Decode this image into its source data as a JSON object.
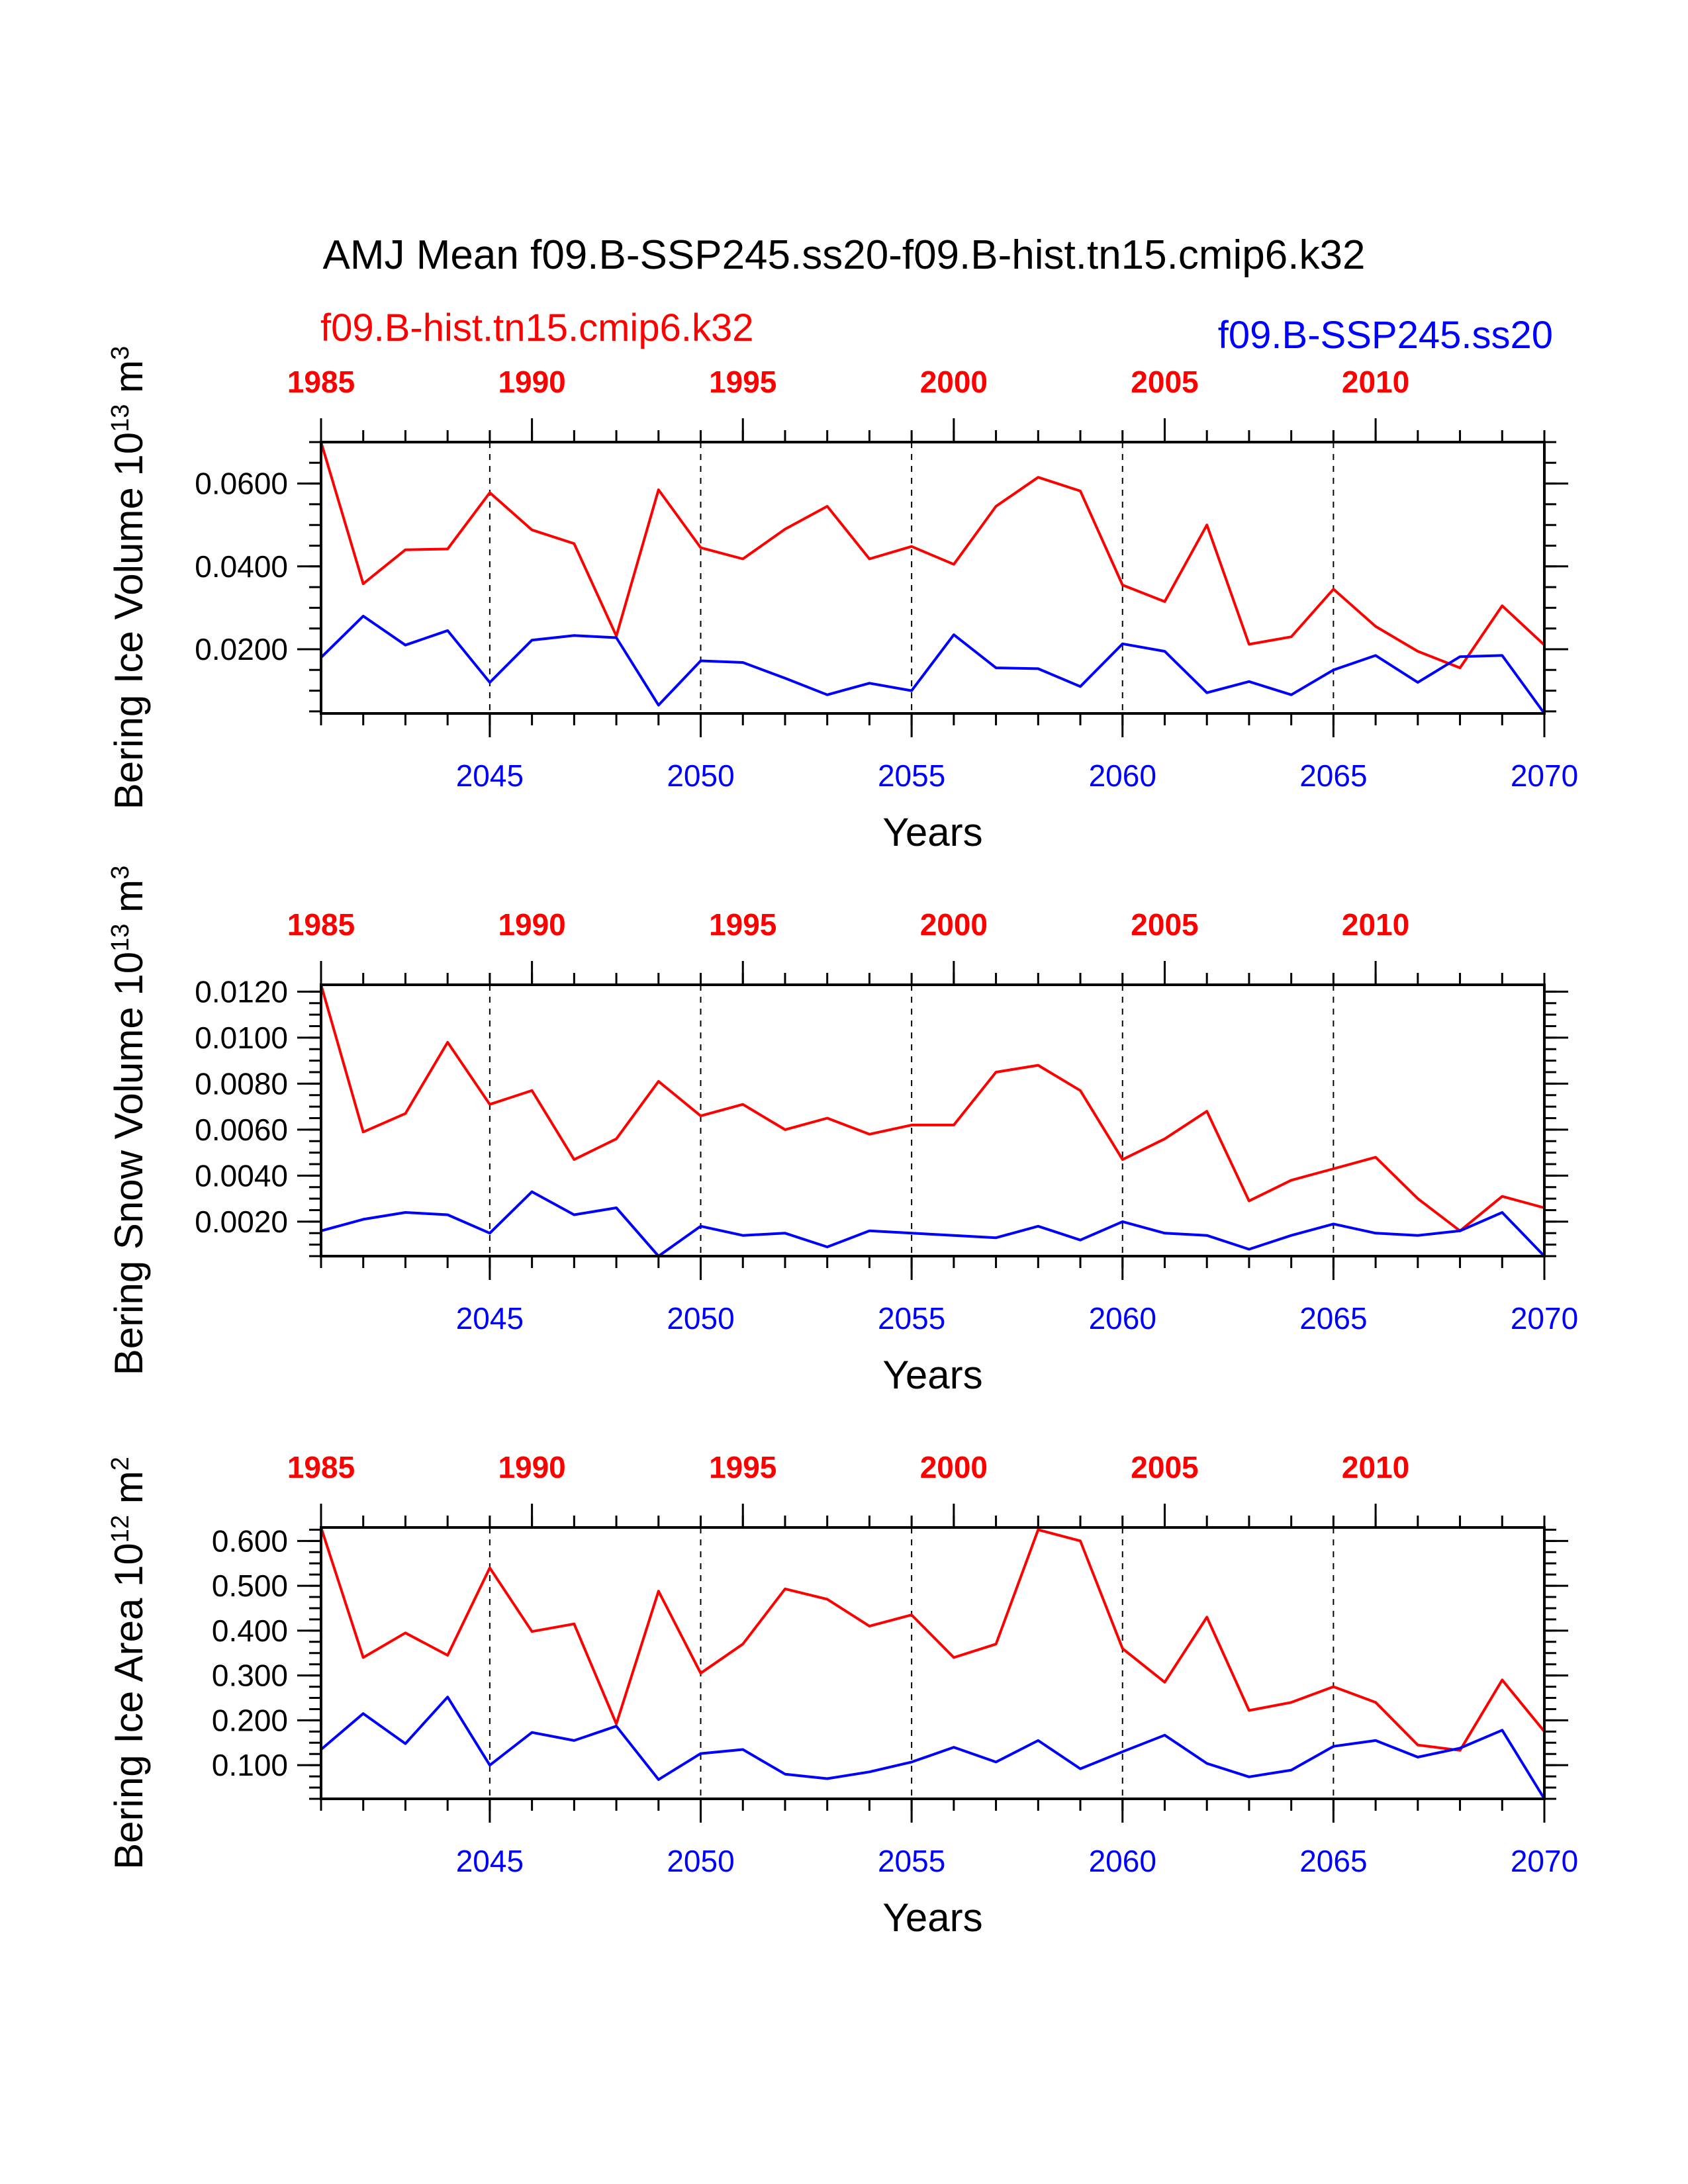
{
  "page": {
    "title": "AMJ Mean f09.B-SSP245.ss20-f09.B-hist.tn15.cmip6.k32",
    "left_case_label": "f09.B-hist.tn15.cmip6.k32",
    "right_case_label": "f09.B-SSP245.ss20",
    "left_case_color": "#ff0000",
    "right_case_color": "#0000ff"
  },
  "chart_data": [
    {
      "type": "line",
      "ylabel": "Bering Ice Volume 10^13 m^3",
      "ylabel_text": "Bering Ice Volume 10",
      "ylabel_exp": "13",
      "ylabel_unit": " m",
      "ylabel_unit_exp": "3",
      "xlabel": "Years",
      "ylim": [
        0.0045,
        0.07
      ],
      "yticks": [
        "0.0200",
        "0.0400",
        "0.0600"
      ],
      "ytick_values": [
        0.02,
        0.04,
        0.06
      ],
      "ytick_minor": 0.005,
      "x_bottom_lim": [
        2041,
        2070
      ],
      "x_bottom_ticks": [
        "2045",
        "2050",
        "2055",
        "2060",
        "2065",
        "2070"
      ],
      "x_top_lim": [
        1985,
        2014
      ],
      "x_top_ticks": [
        "1985",
        "1990",
        "1995",
        "2000",
        "2005",
        "2010"
      ],
      "grid": "vertical dashed",
      "series": [
        {
          "name": "f09.B-hist.tn15.cmip6.k32",
          "color": "#ff0000",
          "x_axis": "top",
          "x": [
            1985,
            1986,
            1987,
            1988,
            1989,
            1990,
            1991,
            1992,
            1993,
            1994,
            1995,
            1996,
            1997,
            1998,
            1999,
            2000,
            2001,
            2002,
            2003,
            2004,
            2005,
            2006,
            2007,
            2008,
            2009,
            2010,
            2011,
            2012,
            2013,
            2014
          ],
          "values": [
            0.07,
            0.0358,
            0.044,
            0.0442,
            0.0578,
            0.0488,
            0.0455,
            0.0232,
            0.0585,
            0.0445,
            0.0418,
            0.049,
            0.0545,
            0.0418,
            0.0448,
            0.0405,
            0.0545,
            0.0615,
            0.0582,
            0.0355,
            0.0315,
            0.05,
            0.0212,
            0.023,
            0.0345,
            0.0255,
            0.0195,
            0.0155,
            0.0305,
            0.021
          ]
        },
        {
          "name": "f09.B-SSP245.ss20",
          "color": "#0000ff",
          "x_axis": "bottom",
          "x": [
            2041,
            2042,
            2043,
            2044,
            2045,
            2046,
            2047,
            2048,
            2049,
            2050,
            2051,
            2052,
            2053,
            2054,
            2055,
            2056,
            2057,
            2058,
            2059,
            2060,
            2061,
            2062,
            2063,
            2064,
            2065,
            2066,
            2067,
            2068,
            2069,
            2070
          ],
          "values": [
            0.018,
            0.028,
            0.021,
            0.0245,
            0.012,
            0.0222,
            0.0233,
            0.0228,
            0.0065,
            0.0172,
            0.0168,
            0.013,
            0.009,
            0.0118,
            0.01,
            0.0235,
            0.0155,
            0.0153,
            0.011,
            0.0213,
            0.0195,
            0.0095,
            0.0122,
            0.009,
            0.015,
            0.0185,
            0.012,
            0.0182,
            0.0185,
            0.0045
          ]
        }
      ]
    },
    {
      "type": "line",
      "ylabel": "Bering Snow Volume 10^13 m^3",
      "ylabel_text": "Bering Snow Volume 10",
      "ylabel_exp": "13",
      "ylabel_unit": " m",
      "ylabel_unit_exp": "3",
      "xlabel": "Years",
      "ylim": [
        0.0005,
        0.0123
      ],
      "yticks": [
        "0.0020",
        "0.0040",
        "0.0060",
        "0.0080",
        "0.0100",
        "0.0120"
      ],
      "ytick_values": [
        0.002,
        0.004,
        0.006,
        0.008,
        0.01,
        0.012
      ],
      "ytick_minor": 0.0005,
      "x_bottom_lim": [
        2041,
        2070
      ],
      "x_bottom_ticks": [
        "2045",
        "2050",
        "2055",
        "2060",
        "2065",
        "2070"
      ],
      "x_top_lim": [
        1985,
        2014
      ],
      "x_top_ticks": [
        "1985",
        "1990",
        "1995",
        "2000",
        "2005",
        "2010"
      ],
      "grid": "vertical dashed",
      "series": [
        {
          "name": "f09.B-hist.tn15.cmip6.k32",
          "color": "#ff0000",
          "x_axis": "top",
          "x": [
            1985,
            1986,
            1987,
            1988,
            1989,
            1990,
            1991,
            1992,
            1993,
            1994,
            1995,
            1996,
            1997,
            1998,
            1999,
            2000,
            2001,
            2002,
            2003,
            2004,
            2005,
            2006,
            2007,
            2008,
            2009,
            2010,
            2011,
            2012,
            2013,
            2014
          ],
          "values": [
            0.0123,
            0.0059,
            0.0067,
            0.0098,
            0.0071,
            0.0077,
            0.0047,
            0.0056,
            0.0081,
            0.0066,
            0.0071,
            0.006,
            0.0065,
            0.0058,
            0.0062,
            0.0062,
            0.0085,
            0.0088,
            0.0077,
            0.0047,
            0.0056,
            0.0068,
            0.0029,
            0.0038,
            0.0043,
            0.0048,
            0.003,
            0.0016,
            0.0031,
            0.0026
          ]
        },
        {
          "name": "f09.B-SSP245.ss20",
          "color": "#0000ff",
          "x_axis": "bottom",
          "x": [
            2041,
            2042,
            2043,
            2044,
            2045,
            2046,
            2047,
            2048,
            2049,
            2050,
            2051,
            2052,
            2053,
            2054,
            2055,
            2056,
            2057,
            2058,
            2059,
            2060,
            2061,
            2062,
            2063,
            2064,
            2065,
            2066,
            2067,
            2068,
            2069,
            2070
          ],
          "values": [
            0.0016,
            0.0021,
            0.0024,
            0.0023,
            0.0015,
            0.0033,
            0.0023,
            0.0026,
            0.0005,
            0.0018,
            0.0014,
            0.0015,
            0.0009,
            0.0016,
            0.0015,
            0.0014,
            0.0013,
            0.0018,
            0.0012,
            0.002,
            0.0015,
            0.0014,
            0.0008,
            0.0014,
            0.0019,
            0.0015,
            0.0014,
            0.0016,
            0.0024,
            0.0005
          ]
        }
      ]
    },
    {
      "type": "line",
      "ylabel": "Bering Ice Area 10^12 m^2",
      "ylabel_text": "Bering Ice Area 10",
      "ylabel_exp": "12",
      "ylabel_unit": " m",
      "ylabel_unit_exp": "2",
      "xlabel": "Years",
      "ylim": [
        0.025,
        0.63
      ],
      "yticks": [
        "0.100",
        "0.200",
        "0.300",
        "0.400",
        "0.500",
        "0.600"
      ],
      "ytick_values": [
        0.1,
        0.2,
        0.3,
        0.4,
        0.5,
        0.6
      ],
      "ytick_minor": 0.025,
      "x_bottom_lim": [
        2041,
        2070
      ],
      "x_bottom_ticks": [
        "2045",
        "2050",
        "2055",
        "2060",
        "2065",
        "2070"
      ],
      "x_top_lim": [
        1985,
        2014
      ],
      "x_top_ticks": [
        "1985",
        "1990",
        "1995",
        "2000",
        "2005",
        "2010"
      ],
      "grid": "vertical dashed",
      "series": [
        {
          "name": "f09.B-hist.tn15.cmip6.k32",
          "color": "#ff0000",
          "x_axis": "top",
          "x": [
            1985,
            1986,
            1987,
            1988,
            1989,
            1990,
            1991,
            1992,
            1993,
            1994,
            1995,
            1996,
            1997,
            1998,
            1999,
            2000,
            2001,
            2002,
            2003,
            2004,
            2005,
            2006,
            2007,
            2008,
            2009,
            2010,
            2011,
            2012,
            2013,
            2014
          ],
          "values": [
            0.63,
            0.34,
            0.395,
            0.345,
            0.54,
            0.398,
            0.415,
            0.192,
            0.488,
            0.305,
            0.37,
            0.493,
            0.47,
            0.41,
            0.435,
            0.34,
            0.37,
            0.625,
            0.6,
            0.36,
            0.285,
            0.43,
            0.222,
            0.24,
            0.275,
            0.24,
            0.145,
            0.133,
            0.29,
            0.175
          ]
        },
        {
          "name": "f09.B-SSP245.ss20",
          "color": "#0000ff",
          "x_axis": "bottom",
          "x": [
            2041,
            2042,
            2043,
            2044,
            2045,
            2046,
            2047,
            2048,
            2049,
            2050,
            2051,
            2052,
            2053,
            2054,
            2055,
            2056,
            2057,
            2058,
            2059,
            2060,
            2061,
            2062,
            2063,
            2064,
            2065,
            2066,
            2067,
            2068,
            2069,
            2070
          ],
          "values": [
            0.135,
            0.215,
            0.148,
            0.252,
            0.1,
            0.173,
            0.155,
            0.187,
            0.068,
            0.126,
            0.135,
            0.08,
            0.07,
            0.085,
            0.107,
            0.14,
            0.107,
            0.155,
            0.092,
            0.13,
            0.167,
            0.104,
            0.074,
            0.089,
            0.142,
            0.155,
            0.118,
            0.138,
            0.178,
            0.025
          ]
        }
      ]
    }
  ]
}
